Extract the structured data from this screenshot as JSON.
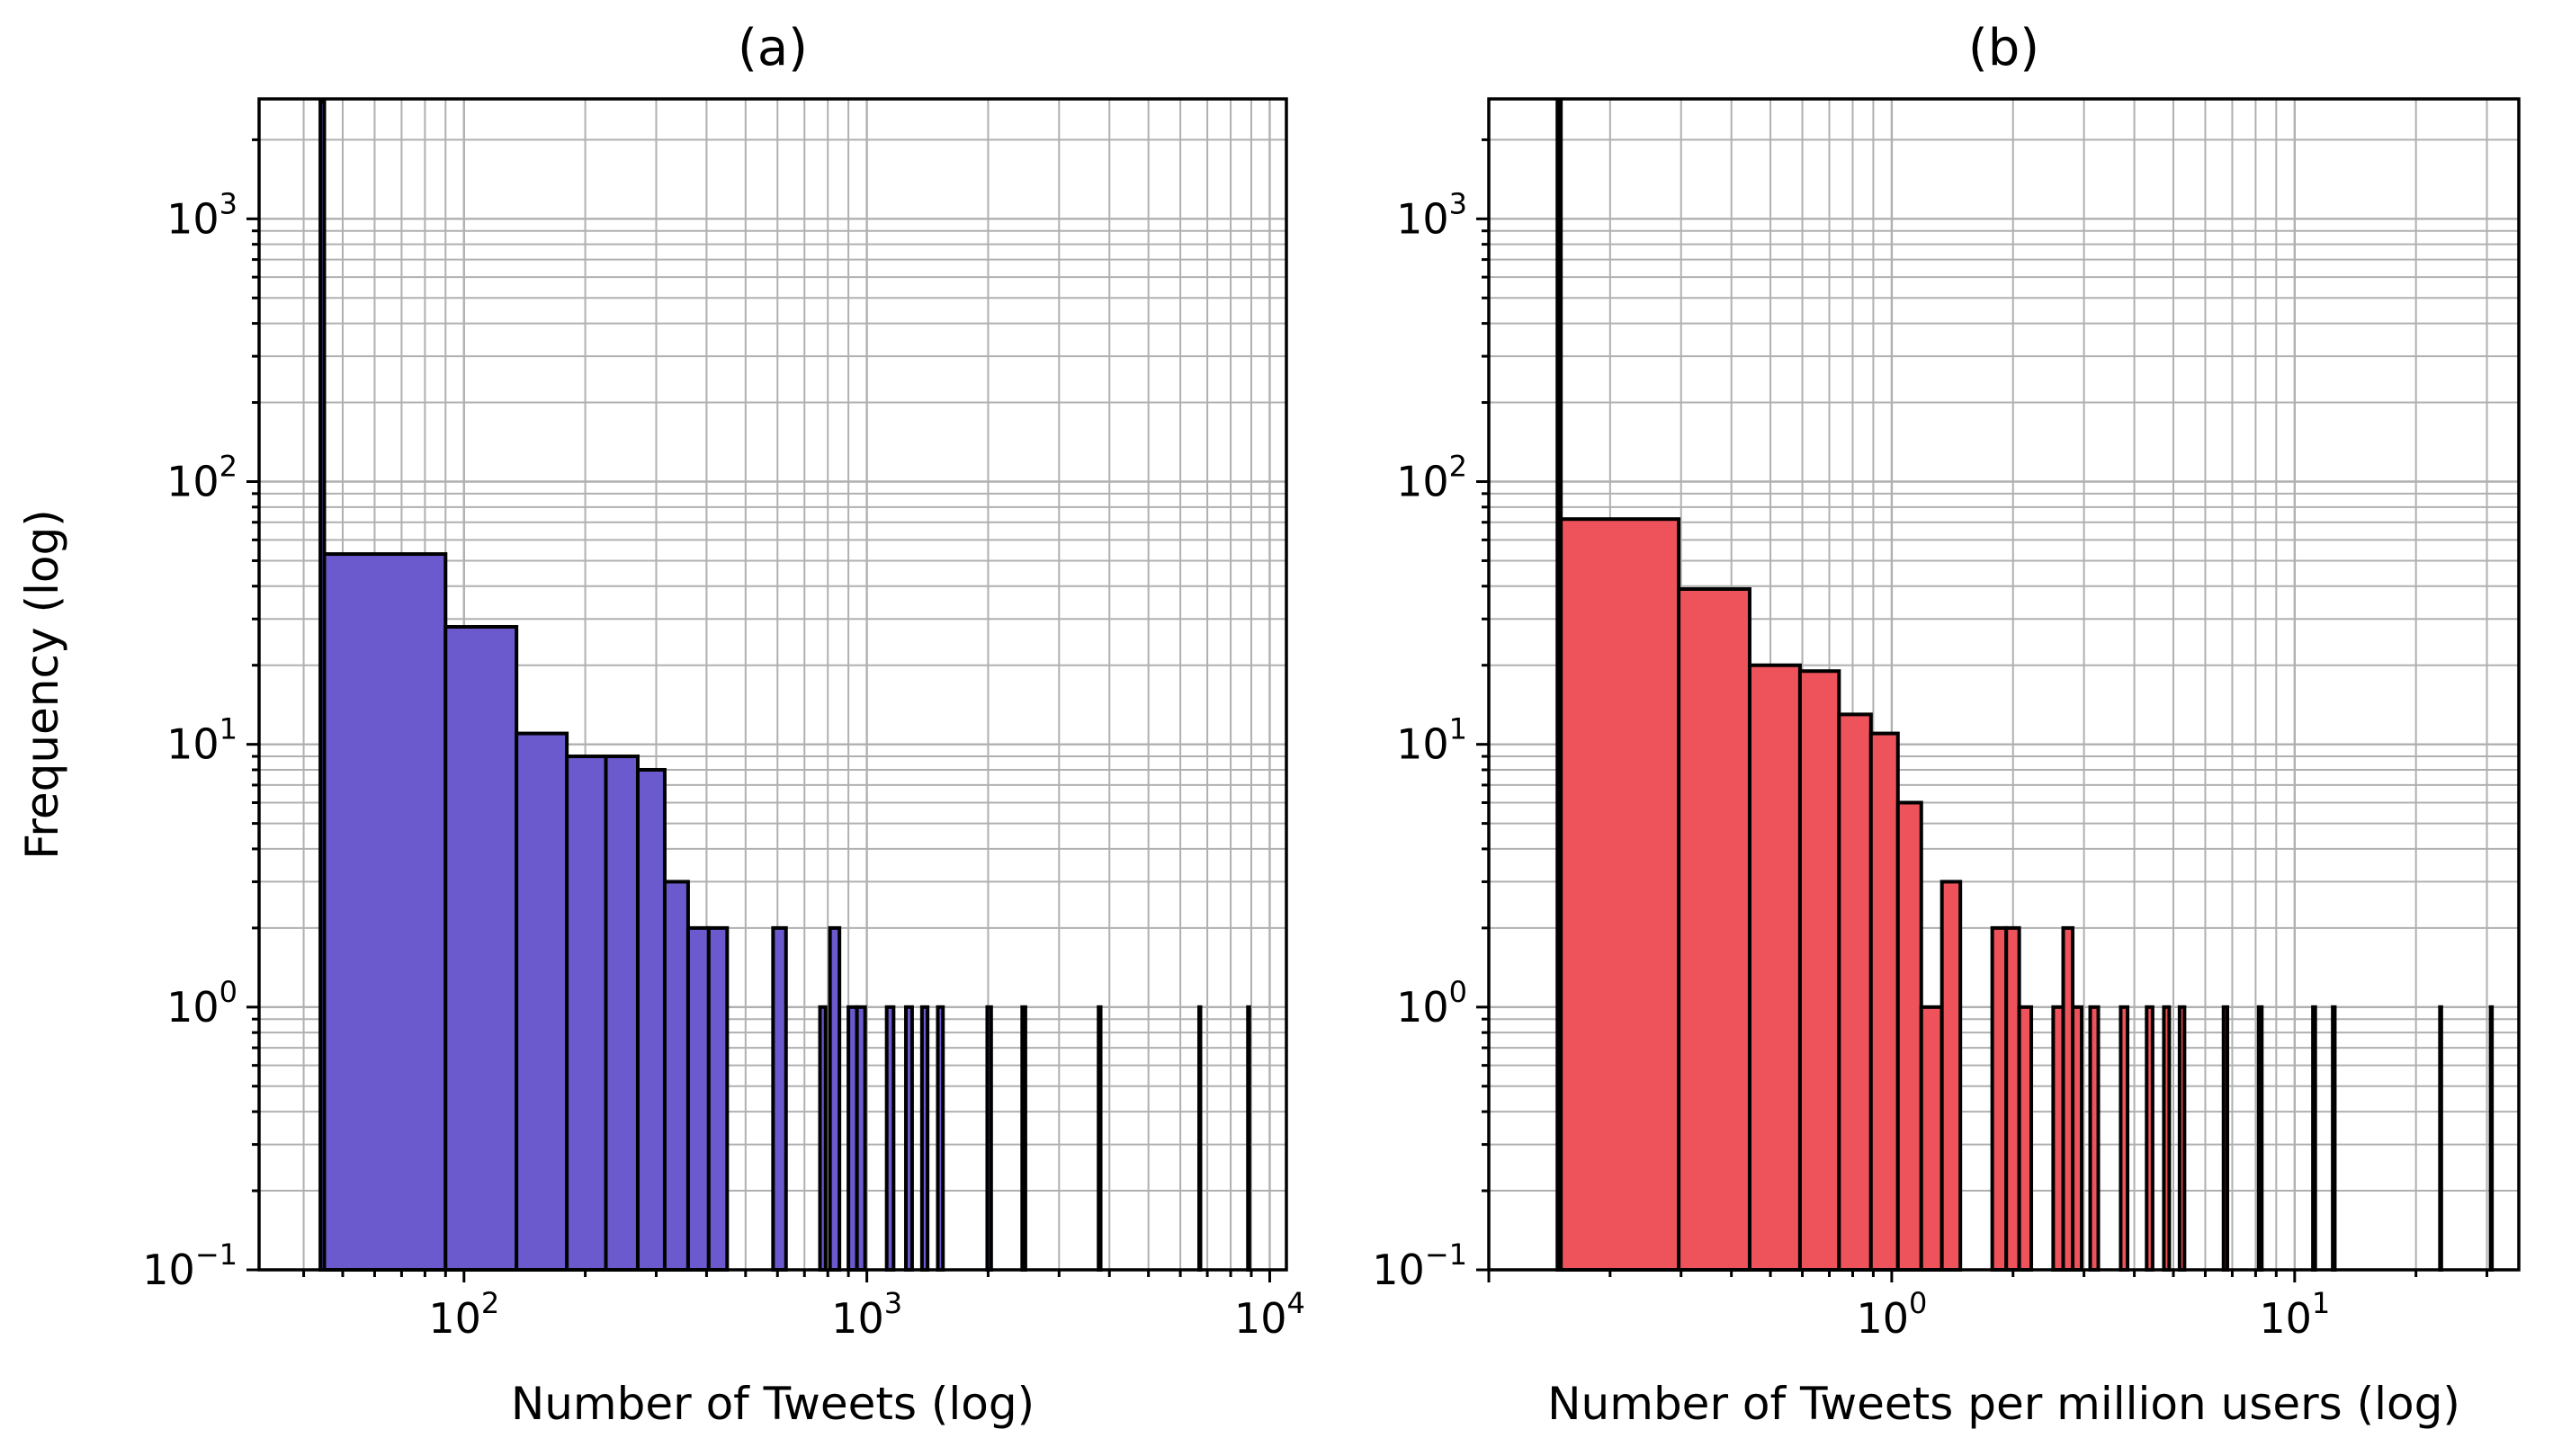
{
  "chart_data": [
    {
      "type": "bar",
      "title": "(a)",
      "xlabel": "Number of Tweets (log)",
      "ylabel": "Frequency (log)",
      "xscale": "log",
      "yscale": "log",
      "xlim": [
        31,
        11000
      ],
      "ylim": [
        0.1,
        2860
      ],
      "grid": true,
      "color": "#6a5acd",
      "x_ticks": [
        {
          "base": "10",
          "exp": "2",
          "value": 100
        },
        {
          "base": "10",
          "exp": "3",
          "value": 1000
        },
        {
          "base": "10",
          "exp": "4",
          "value": 10000
        }
      ],
      "y_ticks": [
        {
          "base": "10",
          "exp": "−1",
          "value": 0.1
        },
        {
          "base": "10",
          "exp": "0",
          "value": 1
        },
        {
          "base": "10",
          "exp": "1",
          "value": 10
        },
        {
          "base": "10",
          "exp": "2",
          "value": 100
        },
        {
          "base": "10",
          "exp": "3",
          "value": 1000
        }
      ],
      "bins": [
        {
          "x0": 44,
          "x1": 45,
          "value": 2800
        },
        {
          "x0": 45,
          "x1": 90,
          "value": 53
        },
        {
          "x0": 90,
          "x1": 135,
          "value": 28
        },
        {
          "x0": 135,
          "x1": 180,
          "value": 11
        },
        {
          "x0": 180,
          "x1": 225,
          "value": 9
        },
        {
          "x0": 225,
          "x1": 270,
          "value": 9
        },
        {
          "x0": 270,
          "x1": 315,
          "value": 8
        },
        {
          "x0": 315,
          "x1": 360,
          "value": 3
        },
        {
          "x0": 360,
          "x1": 405,
          "value": 2
        },
        {
          "x0": 405,
          "x1": 450,
          "value": 2
        },
        {
          "x0": 585,
          "x1": 630,
          "value": 2
        },
        {
          "x0": 765,
          "x1": 790,
          "value": 1
        },
        {
          "x0": 810,
          "x1": 855,
          "value": 2
        },
        {
          "x0": 900,
          "x1": 945,
          "value": 1
        },
        {
          "x0": 945,
          "x1": 990,
          "value": 1
        },
        {
          "x0": 1120,
          "x1": 1165,
          "value": 1
        },
        {
          "x0": 1250,
          "x1": 1295,
          "value": 1
        },
        {
          "x0": 1370,
          "x1": 1415,
          "value": 1
        },
        {
          "x0": 1500,
          "x1": 1545,
          "value": 1
        },
        {
          "x0": 1990,
          "x1": 2035,
          "value": 1
        },
        {
          "x0": 2430,
          "x1": 2475,
          "value": 1
        },
        {
          "x0": 3760,
          "x1": 3805,
          "value": 1
        },
        {
          "x0": 6680,
          "x1": 6725,
          "value": 1
        },
        {
          "x0": 8830,
          "x1": 8875,
          "value": 1
        }
      ]
    },
    {
      "type": "bar",
      "title": "(b)",
      "xlabel": "Number of Tweets per million users (log)",
      "ylabel": "",
      "xscale": "log",
      "yscale": "log",
      "xlim": [
        0.1,
        36
      ],
      "ylim": [
        0.1,
        2860
      ],
      "grid": true,
      "color": "#ee525a",
      "x_ticks": [
        {
          "base": "10",
          "exp": "0",
          "value": 1
        },
        {
          "base": "10",
          "exp": "1",
          "value": 10
        }
      ],
      "y_ticks": [
        {
          "base": "10",
          "exp": "−1",
          "value": 0.1
        },
        {
          "base": "10",
          "exp": "0",
          "value": 1
        },
        {
          "base": "10",
          "exp": "1",
          "value": 10
        },
        {
          "base": "10",
          "exp": "2",
          "value": 100
        },
        {
          "base": "10",
          "exp": "3",
          "value": 1000
        }
      ],
      "bins": [
        {
          "x0": 0.148,
          "x1": 0.151,
          "value": 2800
        },
        {
          "x0": 0.151,
          "x1": 0.296,
          "value": 72
        },
        {
          "x0": 0.296,
          "x1": 0.444,
          "value": 39
        },
        {
          "x0": 0.444,
          "x1": 0.592,
          "value": 20
        },
        {
          "x0": 0.592,
          "x1": 0.74,
          "value": 19
        },
        {
          "x0": 0.74,
          "x1": 0.888,
          "value": 13
        },
        {
          "x0": 0.888,
          "x1": 1.036,
          "value": 11
        },
        {
          "x0": 1.036,
          "x1": 1.184,
          "value": 6
        },
        {
          "x0": 1.184,
          "x1": 1.332,
          "value": 1
        },
        {
          "x0": 1.332,
          "x1": 1.48,
          "value": 3
        },
        {
          "x0": 1.776,
          "x1": 1.924,
          "value": 2
        },
        {
          "x0": 1.924,
          "x1": 2.072,
          "value": 2
        },
        {
          "x0": 2.072,
          "x1": 2.22,
          "value": 1
        },
        {
          "x0": 2.516,
          "x1": 2.664,
          "value": 1
        },
        {
          "x0": 2.664,
          "x1": 2.812,
          "value": 2
        },
        {
          "x0": 2.812,
          "x1": 2.96,
          "value": 1
        },
        {
          "x0": 3.108,
          "x1": 3.256,
          "value": 1
        },
        {
          "x0": 3.7,
          "x1": 3.848,
          "value": 1
        },
        {
          "x0": 4.292,
          "x1": 4.44,
          "value": 1
        },
        {
          "x0": 4.736,
          "x1": 4.884,
          "value": 1
        },
        {
          "x0": 5.18,
          "x1": 5.328,
          "value": 1
        },
        {
          "x0": 6.66,
          "x1": 6.808,
          "value": 1
        },
        {
          "x0": 8.14,
          "x1": 8.288,
          "value": 1
        },
        {
          "x0": 11.1,
          "x1": 11.248,
          "value": 1
        },
        {
          "x0": 12.43,
          "x1": 12.578,
          "value": 1
        },
        {
          "x0": 22.94,
          "x1": 23.088,
          "value": 1
        },
        {
          "x0": 30.64,
          "x1": 30.788,
          "value": 1
        }
      ]
    }
  ]
}
